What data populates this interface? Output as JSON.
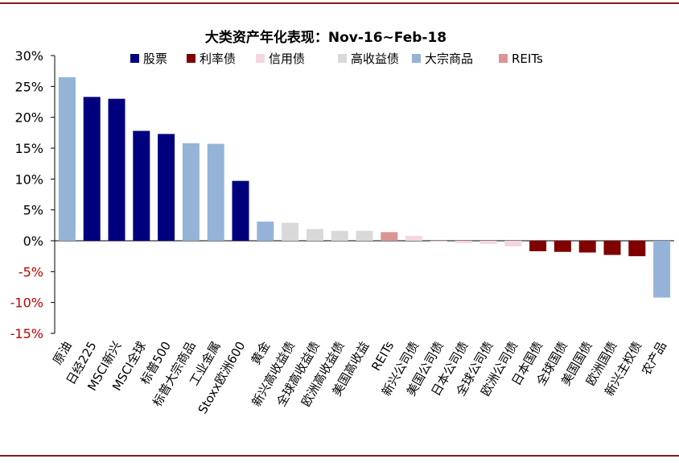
{
  "chart_data": {
    "type": "bar",
    "title": "大类资产年化表现：Nov-16~Feb-18",
    "xlabel": "",
    "ylabel": "",
    "ylim": [
      -15,
      30
    ],
    "yticks": [
      30,
      25,
      20,
      15,
      10,
      5,
      0,
      -5,
      -10,
      -15
    ],
    "ytick_labels": [
      "30%",
      "25%",
      "20%",
      "15%",
      "10%",
      "5%",
      "0%",
      "-5%",
      "-10%",
      "-15%"
    ],
    "legend_position": "top",
    "grid": false,
    "legend": [
      {
        "key": "equity",
        "name": "股票",
        "color": "#00007f"
      },
      {
        "key": "rates",
        "name": "利率债",
        "color": "#800000"
      },
      {
        "key": "credit",
        "name": "信用债",
        "color": "#f5d6dc"
      },
      {
        "key": "hy",
        "name": "高收益债",
        "color": "#d9d9d9"
      },
      {
        "key": "commodity",
        "name": "大宗商品",
        "color": "#95b3d7"
      },
      {
        "key": "reits",
        "name": "REITs",
        "color": "#da9694"
      }
    ],
    "categories": [
      "原油",
      "日经225",
      "MSCI新兴",
      "MSCI全球",
      "标普500",
      "标普大宗商品",
      "工业金属",
      "Stoxx欧洲600",
      "黄金",
      "新兴高收益债",
      "全球高收益债",
      "欧洲高收益债",
      "美国高收益",
      "REITs",
      "新兴公司债",
      "美国公司债",
      "日本公司债",
      "全球公司债",
      "欧洲公司债",
      "日本国债",
      "全球国债",
      "美国国债",
      "欧洲国债",
      "新兴主权债",
      "农产品"
    ],
    "values": [
      26.5,
      23.3,
      23.0,
      17.8,
      17.3,
      15.8,
      15.7,
      9.7,
      3.1,
      2.9,
      1.9,
      1.6,
      1.6,
      1.4,
      0.8,
      -0.2,
      -0.4,
      -0.5,
      -0.9,
      -1.7,
      -1.8,
      -1.9,
      -2.3,
      -2.5,
      -9.2
    ],
    "groups": [
      "commodity",
      "equity",
      "equity",
      "equity",
      "equity",
      "commodity",
      "commodity",
      "equity",
      "commodity",
      "hy",
      "hy",
      "hy",
      "hy",
      "reits",
      "credit",
      "credit",
      "credit",
      "credit",
      "credit",
      "rates",
      "rates",
      "rates",
      "rates",
      "rates",
      "commodity"
    ]
  }
}
